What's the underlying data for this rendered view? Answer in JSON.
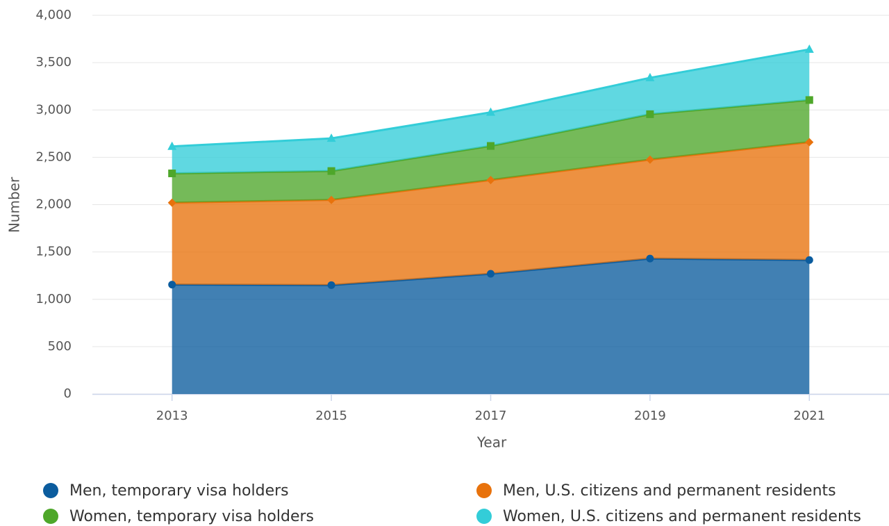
{
  "chart_data": {
    "type": "stacked-area",
    "x_label": "Year",
    "y_label": "Number",
    "x": [
      2013,
      2015,
      2017,
      2019,
      2021
    ],
    "xlim": [
      2012,
      2022
    ],
    "xticks": [
      2013,
      2015,
      2017,
      2019,
      2021
    ],
    "ylim": [
      0,
      4000
    ],
    "yticks": [
      0,
      500,
      {
        "value": 1000,
        "label": "1,000"
      },
      {
        "value": 1500,
        "label": "1,500"
      },
      {
        "value": 2000,
        "label": "2,000"
      },
      {
        "value": 2500,
        "label": "2,500"
      },
      {
        "value": 3000,
        "label": "3,000"
      },
      {
        "value": 3500,
        "label": "3,500"
      },
      {
        "value": 4000,
        "label": "4,000"
      }
    ],
    "grid": true,
    "series": [
      {
        "name": "Men, temporary visa holders",
        "color": "#0b5c9e",
        "values": [
          1155,
          1150,
          1270,
          1430,
          1415
        ]
      },
      {
        "name": "Men, U.S. citizens and permanent residents",
        "color": "#e8720c",
        "values": [
          865,
          900,
          990,
          1045,
          1245
        ]
      },
      {
        "name": "Women, temporary visa holders",
        "color": "#4ea72a",
        "values": [
          310,
          305,
          360,
          480,
          445
        ]
      },
      {
        "name": "Women, U.S. citizens and permanent residents",
        "color": "#33cdd8",
        "values": [
          285,
          345,
          355,
          385,
          535
        ]
      }
    ]
  }
}
